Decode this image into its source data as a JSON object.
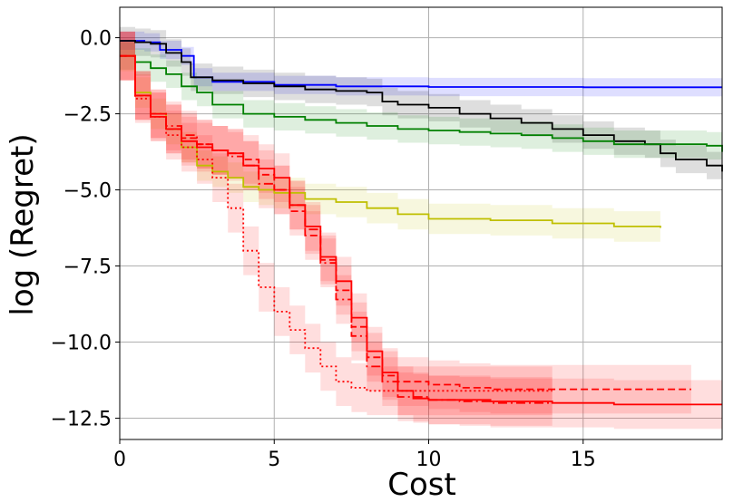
{
  "chart_data": {
    "type": "line",
    "title": "",
    "xlabel": "Cost",
    "ylabel": "log (Regret)",
    "xlim": [
      0,
      19.5
    ],
    "ylim": [
      -13.2,
      1.0
    ],
    "grid": true,
    "xticks": [
      0,
      5,
      10,
      15
    ],
    "xtick_labels": [
      "0",
      "5",
      "10",
      "15"
    ],
    "yticks": [
      0.0,
      -2.5,
      -5.0,
      -7.5,
      -10.0,
      -12.5
    ],
    "ytick_labels": [
      "0.0",
      "−2.5",
      "−5.0",
      "−7.5",
      "−10.0",
      "−12.5"
    ],
    "series": [
      {
        "name": "blue",
        "color": "#0000ff",
        "dash": "solid",
        "band": 0.3,
        "x": [
          0,
          0.8,
          1.3,
          2.0,
          2.4,
          3,
          5,
          7,
          10,
          15,
          19.5
        ],
        "y": [
          -0.1,
          -0.15,
          -0.4,
          -0.6,
          -1.3,
          -1.45,
          -1.55,
          -1.6,
          -1.62,
          -1.63,
          -1.63
        ]
      },
      {
        "name": "black",
        "color": "#000000",
        "dash": "solid",
        "band": 0.45,
        "x": [
          0,
          0.5,
          1,
          1.5,
          2,
          2.3,
          3,
          4,
          5,
          6,
          7,
          8,
          8.5,
          9,
          10,
          11,
          12,
          13,
          14,
          15,
          16,
          17,
          17.5,
          18,
          19,
          19.5
        ],
        "y": [
          -0.1,
          -0.15,
          -0.2,
          -0.5,
          -0.8,
          -1.3,
          -1.4,
          -1.5,
          -1.6,
          -1.7,
          -1.75,
          -1.8,
          -2.1,
          -2.2,
          -2.3,
          -2.5,
          -2.65,
          -2.8,
          -3.0,
          -3.2,
          -3.4,
          -3.5,
          -3.8,
          -4.0,
          -4.2,
          -4.4
        ]
      },
      {
        "name": "green",
        "color": "#008000",
        "dash": "solid",
        "band": 0.45,
        "x": [
          0,
          0.5,
          1,
          1.5,
          2,
          2.5,
          3,
          4,
          5,
          6,
          7,
          8,
          9,
          10,
          11,
          12,
          13,
          14,
          15,
          16,
          17,
          18,
          19,
          19.5
        ],
        "y": [
          -0.6,
          -0.8,
          -1.0,
          -1.2,
          -1.6,
          -1.8,
          -2.2,
          -2.5,
          -2.6,
          -2.7,
          -2.8,
          -2.9,
          -3.0,
          -3.05,
          -3.1,
          -3.15,
          -3.2,
          -3.3,
          -3.4,
          -3.5,
          -3.5,
          -3.5,
          -3.55,
          -3.75
        ]
      },
      {
        "name": "yellow",
        "color": "#bfbf00",
        "dash": "solid",
        "band": 0.5,
        "x": [
          0,
          0.5,
          1,
          1.5,
          2,
          2.5,
          3,
          3.5,
          4,
          4.5,
          5,
          6,
          7,
          8,
          9,
          10,
          12,
          14,
          15,
          16,
          17.5
        ],
        "y": [
          -0.6,
          -1.8,
          -2.5,
          -3.0,
          -3.6,
          -4.2,
          -4.4,
          -4.6,
          -4.9,
          -5.0,
          -5.1,
          -5.3,
          -5.4,
          -5.6,
          -5.8,
          -5.95,
          -6.0,
          -6.1,
          -6.1,
          -6.2,
          -6.25
        ]
      },
      {
        "name": "red-solid",
        "color": "#ff0000",
        "dash": "solid",
        "band": 0.8,
        "x": [
          0,
          0.5,
          1,
          1.5,
          2,
          2.5,
          3,
          3.5,
          4,
          4.5,
          5,
          5.5,
          6,
          6.5,
          7,
          7.5,
          8,
          8.5,
          9,
          9.5,
          10,
          12,
          14,
          16,
          19.5
        ],
        "y": [
          -0.6,
          -1.9,
          -2.6,
          -3.0,
          -3.4,
          -3.6,
          -3.7,
          -3.8,
          -4.2,
          -4.3,
          -4.6,
          -5.5,
          -6.2,
          -7.2,
          -8.0,
          -9.2,
          -10.3,
          -11.0,
          -11.6,
          -11.85,
          -11.9,
          -11.95,
          -12.0,
          -12.05,
          -12.05
        ]
      },
      {
        "name": "red-dashed",
        "color": "#ff0000",
        "dash": "8,4",
        "band": 0.8,
        "x": [
          0,
          0.5,
          1,
          1.5,
          2,
          2.5,
          3,
          3.5,
          4,
          4.5,
          5,
          5.5,
          6,
          6.5,
          7,
          7.5,
          8,
          8.5,
          9,
          10,
          11,
          12,
          14,
          16,
          18.5
        ],
        "y": [
          -0.6,
          -1.9,
          -2.5,
          -3.0,
          -3.3,
          -3.5,
          -3.7,
          -3.8,
          -4.0,
          -4.5,
          -5.0,
          -5.7,
          -6.5,
          -7.3,
          -8.3,
          -9.5,
          -10.5,
          -11.1,
          -11.3,
          -11.4,
          -11.5,
          -11.55,
          -11.55,
          -11.55,
          -11.55
        ]
      },
      {
        "name": "red-dashdot",
        "color": "#ff0000",
        "dash": "10,4,2,4",
        "band": 0.8,
        "x": [
          0,
          0.5,
          1,
          1.5,
          2,
          2.5,
          3,
          3.5,
          4,
          4.5,
          5,
          5.5,
          6,
          6.5,
          7,
          7.5,
          8,
          8.5,
          9,
          10,
          11,
          12,
          14
        ],
        "y": [
          -0.6,
          -1.9,
          -2.5,
          -2.9,
          -3.2,
          -3.5,
          -3.7,
          -3.9,
          -4.2,
          -4.8,
          -5.0,
          -5.5,
          -6.3,
          -7.4,
          -8.6,
          -9.8,
          -10.8,
          -11.3,
          -11.8,
          -11.9,
          -11.95,
          -12.0,
          -12.0
        ]
      },
      {
        "name": "red-dotted",
        "color": "#ff0000",
        "dash": "2,3",
        "band": 0.8,
        "x": [
          0,
          0.5,
          1,
          1.5,
          2,
          2.5,
          3,
          3.5,
          4,
          4.5,
          5,
          5.5,
          6,
          6.5,
          7,
          7.5,
          8,
          10,
          12,
          14
        ],
        "y": [
          -0.6,
          -2.0,
          -2.6,
          -3.2,
          -3.6,
          -4.0,
          -4.6,
          -5.6,
          -7.0,
          -8.2,
          -9.0,
          -9.6,
          -10.2,
          -10.8,
          -11.3,
          -11.5,
          -11.6,
          -11.6,
          -11.6,
          -11.6
        ]
      }
    ]
  }
}
